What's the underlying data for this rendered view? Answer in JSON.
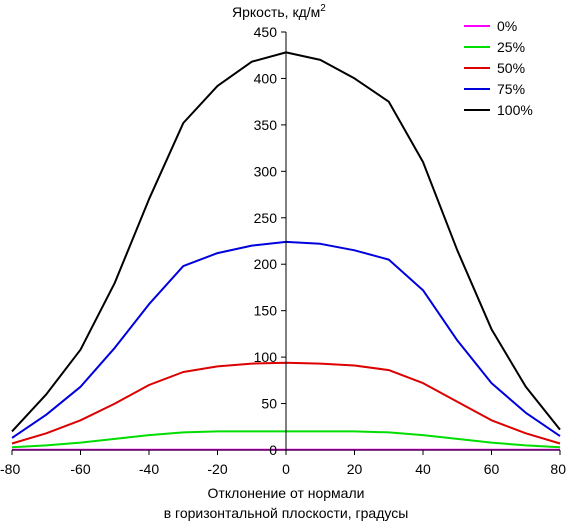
{
  "chart_data": {
    "type": "line",
    "ylabel": "Яркость, кд/м",
    "ylabel_sup": "2",
    "xlabel_line1": "Отклонение от нормали",
    "xlabel_line2": "в горизонтальной плоскости, градусы",
    "xlim": [
      -80,
      80
    ],
    "ylim": [
      0,
      450
    ],
    "x_ticks": [
      -80,
      -60,
      -40,
      -20,
      0,
      20,
      40,
      60,
      80
    ],
    "y_ticks": [
      0,
      50,
      100,
      150,
      200,
      250,
      300,
      350,
      400,
      450
    ],
    "grid": false,
    "legend_position": "top-right",
    "x": [
      -80,
      -70,
      -60,
      -50,
      -40,
      -30,
      -20,
      -10,
      0,
      10,
      20,
      30,
      40,
      50,
      60,
      70,
      80
    ],
    "series": [
      {
        "name": "0%",
        "color": "#ff00ff",
        "values": [
          0.3,
          0.3,
          0.3,
          0.3,
          0.3,
          0.3,
          0.3,
          0.3,
          0.3,
          0.3,
          0.3,
          0.3,
          0.3,
          0.3,
          0.3,
          0.3,
          0.3
        ]
      },
      {
        "name": "25%",
        "color": "#00dd00",
        "values": [
          3,
          5,
          8,
          12,
          16,
          19,
          20,
          20,
          20,
          20,
          20,
          19,
          16,
          12,
          8,
          5,
          3
        ]
      },
      {
        "name": "50%",
        "color": "#dd0000",
        "values": [
          7,
          18,
          32,
          50,
          70,
          84,
          90,
          93,
          94,
          93,
          91,
          86,
          72,
          52,
          32,
          18,
          7
        ]
      },
      {
        "name": "75%",
        "color": "#0000dd",
        "values": [
          13,
          38,
          68,
          110,
          157,
          198,
          212,
          220,
          224,
          222,
          215,
          205,
          172,
          118,
          72,
          40,
          15
        ]
      },
      {
        "name": "100%",
        "color": "#000000",
        "values": [
          20,
          60,
          108,
          180,
          270,
          352,
          392,
          418,
          428,
          420,
          400,
          375,
          310,
          215,
          130,
          68,
          22
        ]
      }
    ]
  }
}
